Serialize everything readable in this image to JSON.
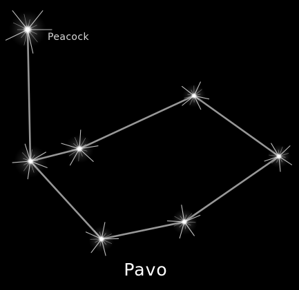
{
  "constellation": {
    "name": "Pavo",
    "labeled_star": "Peacock",
    "colors": {
      "background": "#000000",
      "line": "#a8a8a8",
      "star": "#ffffff",
      "label": "#d8d8d8"
    }
  }
}
